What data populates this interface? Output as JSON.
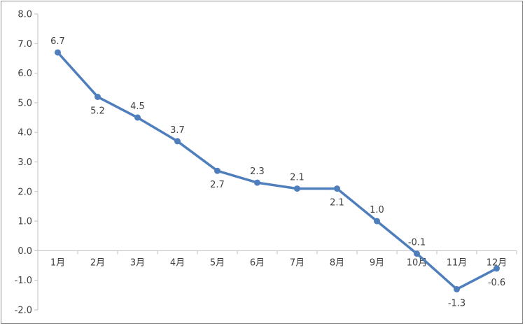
{
  "chart_data": {
    "type": "line",
    "categories": [
      "1月",
      "2月",
      "3月",
      "4月",
      "5月",
      "6月",
      "7月",
      "8月",
      "9月",
      "10月",
      "11月",
      "12月"
    ],
    "series": [
      {
        "values": [
          6.7,
          5.2,
          4.5,
          3.7,
          2.7,
          2.3,
          2.1,
          2.1,
          1.0,
          -0.1,
          -1.3,
          -0.6
        ]
      }
    ],
    "data_labels": [
      "6.7",
      "5.2",
      "4.5",
      "3.7",
      "2.7",
      "2.3",
      "2.1",
      "2.1",
      "1.0",
      "-0.1",
      "-1.3",
      "-0.6"
    ],
    "y_ticks": [
      "8.0",
      "7.0",
      "6.0",
      "5.0",
      "4.0",
      "3.0",
      "2.0",
      "1.0",
      "0.0",
      "-1.0",
      "-2.0"
    ],
    "ylim": [
      -2,
      8
    ],
    "y_step": 1,
    "title": "",
    "xlabel": "",
    "ylabel": "",
    "grid": false,
    "line_color": "#4f7ebd",
    "axis_color": "#bfbfbf",
    "text_color": "#404040"
  }
}
